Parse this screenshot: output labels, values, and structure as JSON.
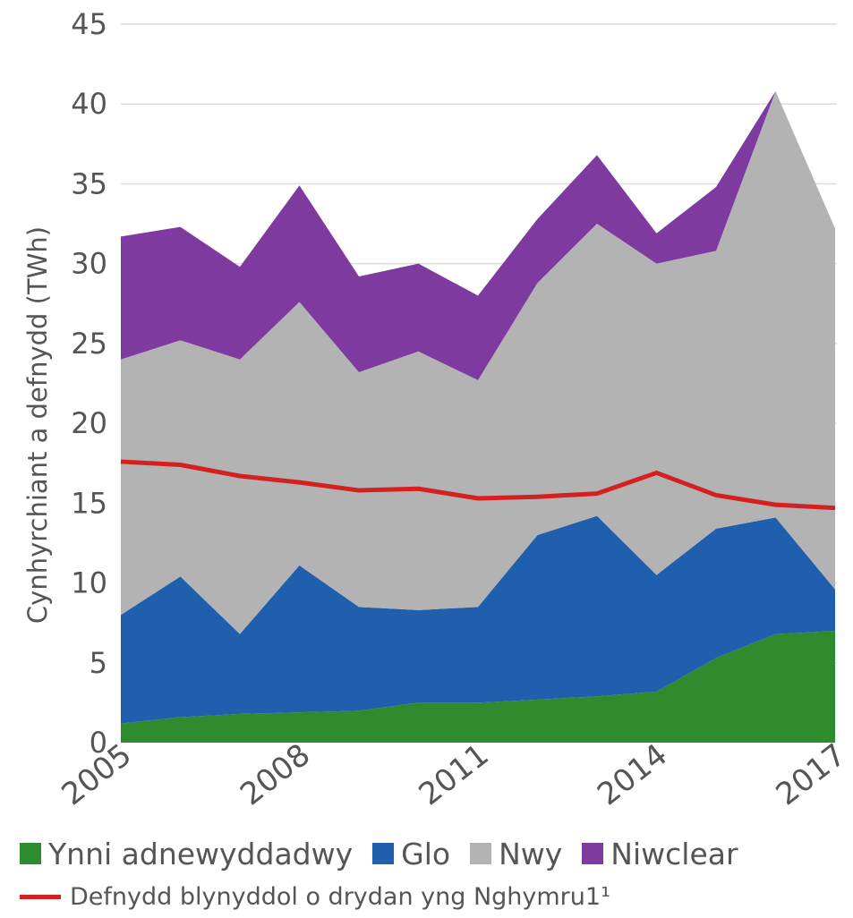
{
  "chart_data": {
    "type": "area",
    "stacked": true,
    "title": "",
    "xlabel": "",
    "ylabel": "Cynhyrchiant a defnydd  (TWh)",
    "ylim": [
      0,
      45
    ],
    "yticks": [
      0,
      5,
      10,
      15,
      20,
      25,
      30,
      35,
      40,
      45
    ],
    "xlim": [
      2005,
      2017
    ],
    "xticks": [
      "2005",
      "2008",
      "2011",
      "2014",
      "2017"
    ],
    "grid": true,
    "legend_position": "bottom",
    "x": [
      2005,
      2006,
      2007,
      2008,
      2009,
      2010,
      2011,
      2012,
      2013,
      2014,
      2015,
      2016,
      2017
    ],
    "series": [
      {
        "name": "Ynni adnewyddadwy",
        "color": "#2e8b2e",
        "values": [
          1.2,
          1.6,
          1.8,
          1.9,
          2.0,
          2.5,
          2.5,
          2.7,
          2.9,
          3.2,
          5.3,
          6.8,
          7.0
        ]
      },
      {
        "name": "Glo",
        "color": "#1f5fae",
        "values": [
          6.8,
          8.8,
          5.0,
          9.2,
          6.5,
          5.8,
          6.0,
          10.3,
          11.3,
          7.3,
          8.1,
          7.3,
          2.6
        ]
      },
      {
        "name": "Nwy",
        "color": "#b3b3b3",
        "values": [
          16.0,
          14.8,
          17.2,
          16.5,
          14.7,
          16.2,
          14.2,
          15.8,
          18.3,
          19.5,
          17.4,
          26.7,
          22.6
        ]
      },
      {
        "name": "Niwclear",
        "color": "#7e3a9e",
        "values": [
          7.7,
          7.1,
          5.8,
          7.3,
          6.0,
          5.5,
          5.3,
          4.0,
          4.3,
          1.9,
          4.0,
          0.0,
          0.0
        ]
      }
    ],
    "line_series": {
      "name": "Defnydd blynyddol o drydan yng Nghymru1¹",
      "color": "#d42020",
      "values": [
        17.6,
        17.4,
        16.7,
        16.3,
        15.8,
        15.9,
        15.3,
        15.4,
        15.6,
        16.9,
        15.5,
        14.9,
        14.7
      ]
    }
  }
}
